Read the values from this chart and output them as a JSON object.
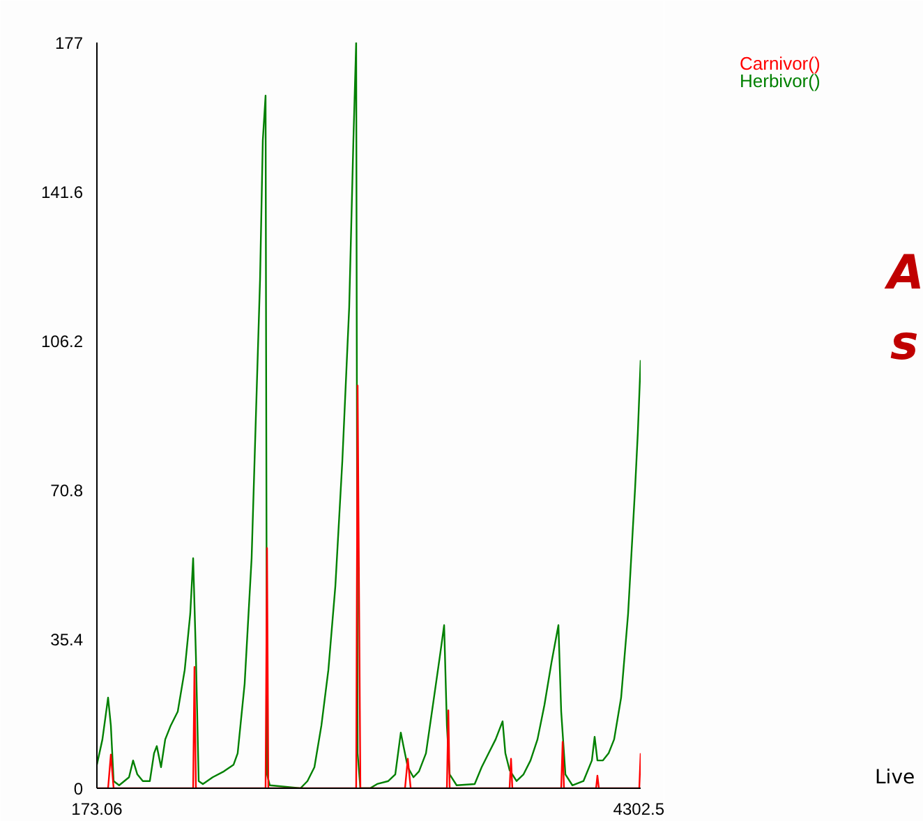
{
  "chart_data": {
    "type": "line",
    "xlim": [
      173.06,
      4302.5
    ],
    "ylim": [
      0,
      177
    ],
    "xticks": [
      173.06,
      4302.5
    ],
    "yticks": [
      0,
      35.4,
      70.8,
      106.2,
      141.6,
      177
    ],
    "grid": false,
    "annotations": [
      "A",
      "s",
      "Live"
    ],
    "series": [
      {
        "name": "Carnivor()",
        "color": "#ff0000",
        "x": [
          173.06,
          258,
          279,
          300,
          904,
          914,
          925,
          1454,
          1465,
          1475,
          2142,
          2153,
          2174,
          2513,
          2534,
          2556,
          2831,
          2842,
          2852,
          3307,
          3318,
          3328,
          3699,
          3710,
          3720,
          3964,
          3974,
          3985,
          4292,
          4302.5
        ],
        "values": [
          0,
          0,
          8,
          0,
          0,
          28.8,
          0,
          0,
          57,
          0,
          0,
          95.6,
          0,
          0,
          7,
          0,
          0,
          18.5,
          0,
          0,
          7,
          0,
          0,
          11,
          0,
          0,
          3,
          0,
          0,
          8.3
        ]
      },
      {
        "name": "Herbivor()",
        "color": "#008000",
        "x": [
          173.06,
          215,
          258,
          279,
          300,
          342,
          417,
          448,
          480,
          522,
          575,
          607,
          628,
          660,
          692,
          734,
          787,
          840,
          882,
          904,
          925,
          946,
          978,
          1052,
          1137,
          1211,
          1242,
          1295,
          1348,
          1380,
          1412,
          1433,
          1454,
          1465,
          1486,
          1719,
          1772,
          1825,
          1878,
          1931,
          1984,
          2037,
          2089,
          2121,
          2142,
          2153,
          2174,
          2248,
          2301,
          2386,
          2439,
          2481,
          2502,
          2534,
          2577,
          2619,
          2672,
          2725,
          2778,
          2810,
          2831,
          2852,
          2905,
          3042,
          3095,
          3148,
          3201,
          3254,
          3275,
          3307,
          3360,
          3413,
          3466,
          3519,
          3572,
          3625,
          3678,
          3699,
          3731,
          3784,
          3868,
          3932,
          3953,
          3974,
          4016,
          4059,
          4101,
          4154,
          4207,
          4260,
          4281,
          4302.5
        ],
        "values": [
          5.6,
          11.6,
          21.5,
          14.9,
          1.7,
          0.7,
          2.6,
          6.6,
          3.3,
          1.7,
          1.7,
          8.3,
          10,
          5,
          11.6,
          14.9,
          18.2,
          28.1,
          41.4,
          54.6,
          31.4,
          1.7,
          1,
          2.6,
          4,
          5.6,
          8.3,
          24.8,
          54.6,
          87.7,
          120.7,
          153.8,
          164.4,
          3.3,
          0.7,
          0,
          1.7,
          5,
          14.9,
          28.1,
          48,
          77.7,
          114.1,
          153.8,
          177,
          8.3,
          0,
          0,
          1,
          1.7,
          3.3,
          13.2,
          9.9,
          5,
          2.6,
          4,
          8.3,
          19.8,
          31.4,
          38.7,
          14.9,
          3.3,
          0.7,
          1,
          5,
          8.3,
          11.6,
          15.9,
          8.3,
          4.3,
          1.7,
          3.3,
          6.6,
          11.6,
          19.8,
          29.8,
          38.7,
          18.2,
          3.3,
          0.7,
          1.7,
          6.6,
          12.2,
          6.6,
          6.6,
          8.3,
          11.6,
          21.5,
          41.4,
          71.1,
          84.4,
          101.6
        ]
      }
    ]
  }
}
